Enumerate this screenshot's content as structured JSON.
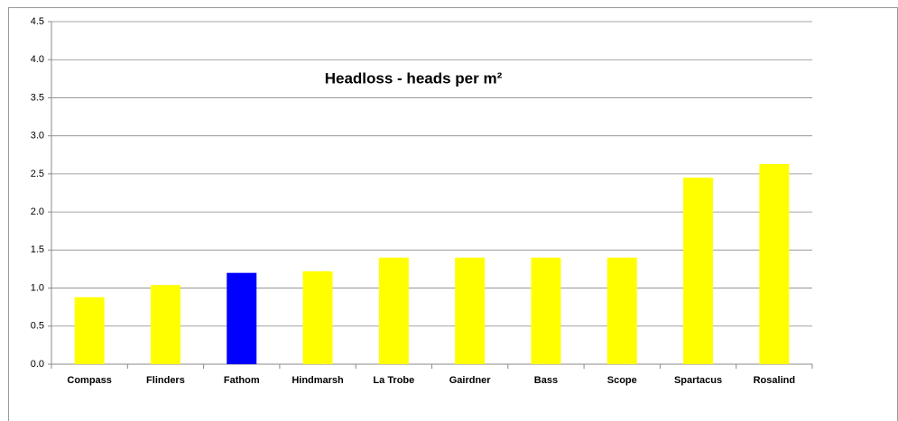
{
  "chart_data": {
    "type": "bar",
    "title": "Headloss - heads per m²",
    "categories": [
      "Compass",
      "Flinders",
      "Fathom",
      "Hindmarsh",
      "La Trobe",
      "Gairdner",
      "Bass",
      "Scope",
      "Spartacus",
      "Rosalind"
    ],
    "values": [
      0.88,
      1.04,
      1.2,
      1.22,
      1.4,
      1.4,
      1.4,
      1.4,
      2.45,
      2.63
    ],
    "colors": [
      "#ffff00",
      "#ffff00",
      "#0000ff",
      "#ffff00",
      "#ffff00",
      "#ffff00",
      "#ffff00",
      "#ffff00",
      "#ffff00",
      "#ffff00"
    ],
    "ylim": [
      0,
      4.5
    ],
    "yticks": [
      {
        "value": 0,
        "label": "0.0"
      },
      {
        "value": 0.5,
        "label": "0.5"
      },
      {
        "value": 1,
        "label": "1.0"
      },
      {
        "value": 1.5,
        "label": "1.5"
      },
      {
        "value": 2,
        "label": "2.0"
      },
      {
        "value": 2.5,
        "label": "2.5"
      },
      {
        "value": 3,
        "label": "3.0"
      },
      {
        "value": 3.5,
        "label": "3.5"
      },
      {
        "value": 4,
        "label": "4.0"
      },
      {
        "value": 4.5,
        "label": "4.5"
      }
    ],
    "grid": true
  }
}
